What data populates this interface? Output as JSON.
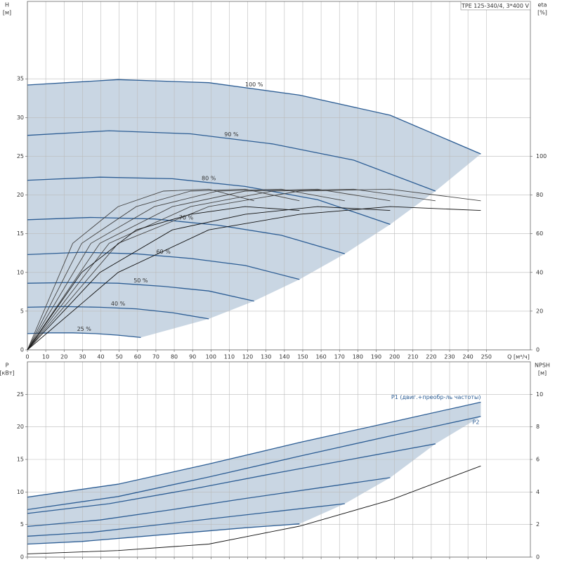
{
  "chart_data": [
    {
      "type": "line",
      "model": "TPE 125-340/4, 3*400 V",
      "xlabel": "Q [м³/ч]",
      "ylabel": [
        "H",
        "[м]"
      ],
      "y2label": [
        "eta",
        "[%]"
      ],
      "xlim": [
        0,
        274
      ],
      "xticks": [
        0,
        10,
        20,
        30,
        40,
        50,
        60,
        70,
        80,
        90,
        100,
        110,
        120,
        130,
        140,
        150,
        160,
        170,
        180,
        190,
        200,
        210,
        220,
        230,
        240,
        250
      ],
      "ylim": [
        0,
        45
      ],
      "yticks": [
        0,
        5,
        10,
        15,
        20,
        25,
        30,
        35
      ],
      "y2lim": [
        0,
        180
      ],
      "y2ticks": [
        0,
        20,
        40,
        60,
        80,
        100
      ],
      "grid": true,
      "fill": "#c9d6e3",
      "series": [
        {
          "name": "100 %",
          "color": "#2c5d94",
          "x": [
            0,
            49.4,
            98.8,
            148.2,
            197.6,
            247
          ],
          "values": [
            34.2,
            34.9,
            34.5,
            32.9,
            30.3,
            25.3
          ]
        },
        {
          "name": "90 %",
          "color": "#2c5d94",
          "x": [
            0,
            44.5,
            88.9,
            133.4,
            177.8,
            222.3
          ],
          "values": [
            27.7,
            28.3,
            27.9,
            26.6,
            24.5,
            20.5
          ]
        },
        {
          "name": "80 %",
          "color": "#2c5d94",
          "x": [
            0,
            39.5,
            79,
            118.6,
            158.1,
            197.6
          ],
          "values": [
            21.9,
            22.3,
            22.1,
            21.1,
            19.4,
            16.2
          ]
        },
        {
          "name": "70 %",
          "color": "#2c5d94",
          "x": [
            0,
            34.6,
            69.2,
            103.7,
            138.3,
            172.9
          ],
          "values": [
            16.8,
            17.1,
            16.9,
            16.1,
            14.8,
            12.4
          ]
        },
        {
          "name": "60 %",
          "color": "#2c5d94",
          "x": [
            0,
            29.6,
            59.3,
            88.9,
            118.6,
            148.2
          ],
          "values": [
            12.3,
            12.6,
            12.4,
            11.8,
            10.9,
            9.1
          ]
        },
        {
          "name": "50 %",
          "color": "#2c5d94",
          "x": [
            0,
            24.7,
            49.4,
            74.1,
            98.8,
            123.5
          ],
          "values": [
            8.6,
            8.7,
            8.6,
            8.2,
            7.6,
            6.3
          ]
        },
        {
          "name": "40 %",
          "color": "#2c5d94",
          "x": [
            0,
            19.8,
            39.5,
            59.3,
            79,
            98.8
          ],
          "values": [
            5.5,
            5.6,
            5.5,
            5.3,
            4.8,
            4.0
          ]
        },
        {
          "name": "25 %",
          "color": "#2c5d94",
          "x": [
            0,
            12.4,
            24.7,
            37.1,
            49.4,
            61.8
          ],
          "values": [
            2.1,
            2.2,
            2.2,
            2.1,
            1.9,
            1.6
          ]
        },
        {
          "axis": "y2",
          "color": "#444444",
          "x": [
            0,
            49.4,
            98.8,
            148.2,
            197.6,
            247
          ],
          "values": [
            0,
            55,
            74,
            82,
            83,
            77
          ]
        },
        {
          "axis": "y2",
          "color": "#444444",
          "x": [
            0,
            44.5,
            88.9,
            133.4,
            177.8,
            222.3
          ],
          "values": [
            0,
            55,
            74,
            82,
            83,
            77
          ]
        },
        {
          "axis": "y2",
          "color": "#444444",
          "x": [
            0,
            39.5,
            79,
            118.6,
            158.1,
            197.6
          ],
          "values": [
            0,
            55,
            74,
            82,
            83,
            77
          ]
        },
        {
          "axis": "y2",
          "color": "#444444",
          "x": [
            0,
            34.6,
            69.2,
            103.7,
            138.3,
            172.9
          ],
          "values": [
            0,
            55,
            74,
            82,
            83,
            77
          ]
        },
        {
          "axis": "y2",
          "color": "#444444",
          "x": [
            0,
            29.6,
            59.3,
            88.9,
            118.6,
            148.2
          ],
          "values": [
            0,
            55,
            74,
            82,
            83,
            77
          ]
        },
        {
          "axis": "y2",
          "color": "#444444",
          "x": [
            0,
            24.7,
            49.4,
            74.1,
            98.8,
            123.5
          ],
          "values": [
            0,
            55,
            74,
            82,
            83,
            77
          ]
        },
        {
          "axis": "y2",
          "color": "#111111",
          "x": [
            0,
            49.4,
            98.8,
            148.2,
            197.6,
            247
          ],
          "values": [
            0,
            40,
            62,
            70,
            74,
            72
          ]
        },
        {
          "axis": "y2",
          "color": "#111111",
          "x": [
            0,
            39.5,
            79,
            118.6,
            158.1,
            197.6
          ],
          "values": [
            0,
            40,
            62,
            70,
            74,
            72
          ]
        },
        {
          "axis": "y2",
          "color": "#111111",
          "x": [
            0,
            29.6,
            59.3,
            88.9,
            118.6,
            148.2
          ],
          "values": [
            0,
            40,
            62,
            70,
            74,
            72
          ]
        }
      ]
    },
    {
      "type": "line",
      "ylabel": [
        "P",
        "[кВт]"
      ],
      "y2label": [
        "NPSH",
        "[м]"
      ],
      "xlim": [
        0,
        274
      ],
      "xticks": [
        0,
        10,
        20,
        30,
        40,
        50,
        60,
        70,
        80,
        90,
        100,
        110,
        120,
        130,
        140,
        150,
        160,
        170,
        180,
        190,
        200,
        210,
        220,
        230,
        240,
        250
      ],
      "ylim": [
        0,
        30
      ],
      "yticks": [
        0,
        5,
        10,
        15,
        20,
        25
      ],
      "y2lim": [
        0,
        12
      ],
      "y2ticks": [
        0,
        2,
        4,
        6,
        8,
        10
      ],
      "grid": true,
      "fill": "#c9d6e3",
      "series": [
        {
          "name": "P1 (двиг.+преобр-ль частоты)",
          "color": "#2c5d94",
          "x": [
            0,
            49.4,
            98.8,
            148.2,
            197.6,
            247
          ],
          "values": [
            9.2,
            11.2,
            14.3,
            17.6,
            20.7,
            23.8
          ]
        },
        {
          "name": "P2",
          "color": "#2c5d94",
          "x": [
            0,
            49.4,
            98.8,
            148.2,
            197.6,
            247
          ],
          "values": [
            7.3,
            9.3,
            12.3,
            15.5,
            18.6,
            21.6
          ]
        },
        {
          "color": "#2c5d94",
          "x": [
            0,
            44.5,
            88.9,
            133.4,
            177.8,
            222.3
          ],
          "values": [
            6.7,
            8.2,
            10.4,
            12.8,
            15.1,
            17.4
          ]
        },
        {
          "color": "#2c5d94",
          "x": [
            0,
            39.5,
            79,
            118.6,
            158.1,
            197.6
          ],
          "values": [
            4.7,
            5.7,
            7.3,
            9.0,
            10.6,
            12.2
          ]
        },
        {
          "color": "#2c5d94",
          "x": [
            0,
            34.6,
            69.2,
            103.7,
            138.3,
            172.9
          ],
          "values": [
            3.2,
            3.8,
            4.9,
            6.0,
            7.1,
            8.2
          ]
        },
        {
          "color": "#2c5d94",
          "x": [
            0,
            29.6,
            59.3,
            88.9,
            118.6,
            148.2
          ],
          "values": [
            2.0,
            2.4,
            3.1,
            3.8,
            4.5,
            5.1
          ]
        },
        {
          "axis": "y2",
          "color": "#111111",
          "x": [
            0,
            49.4,
            98.8,
            148.2,
            197.6,
            247
          ],
          "values": [
            0.2,
            0.4,
            0.8,
            1.9,
            3.5,
            5.6
          ]
        }
      ]
    }
  ]
}
